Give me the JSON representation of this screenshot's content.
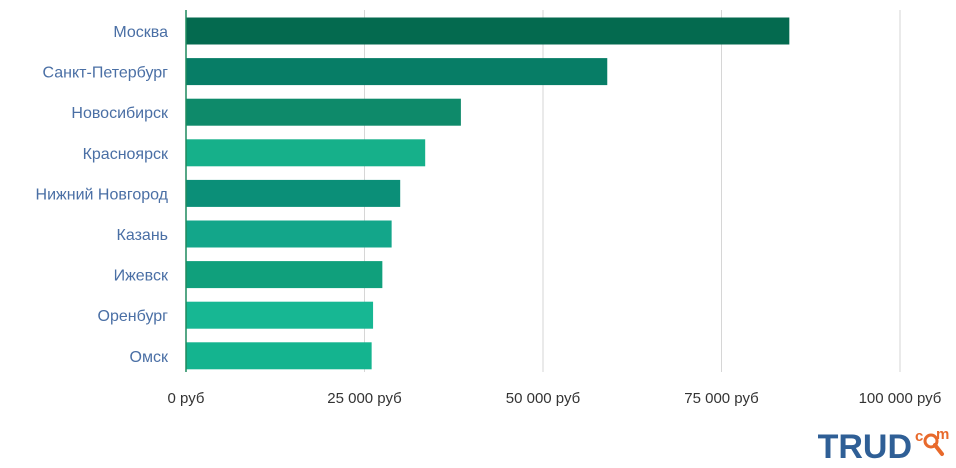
{
  "chart_data": {
    "type": "bar",
    "orientation": "horizontal",
    "categories": [
      "Москва",
      "Санкт-Петербург",
      "Новосибирск",
      "Красноярск",
      "Нижний Новгород",
      "Казань",
      "Ижевск",
      "Оренбург",
      "Омск"
    ],
    "values": [
      84500,
      59000,
      38500,
      33500,
      30000,
      28800,
      27500,
      26200,
      26000
    ],
    "xlim": [
      0,
      100000
    ],
    "xticks": [
      0,
      25000,
      50000,
      75000,
      100000
    ],
    "xtick_labels": [
      "0 руб",
      "25 000 руб",
      "50 000 руб",
      "75 000 руб",
      "100 000 руб"
    ],
    "bar_colors": [
      "#046a4f",
      "#077d66",
      "#0e8a6a",
      "#16b08a",
      "#0b8f78",
      "#13a68a",
      "#10a07c",
      "#17b793",
      "#14b48f"
    ],
    "grid": true
  },
  "logo": {
    "text": "TRUD",
    "sup_c": "c",
    "sup_m": "m"
  }
}
